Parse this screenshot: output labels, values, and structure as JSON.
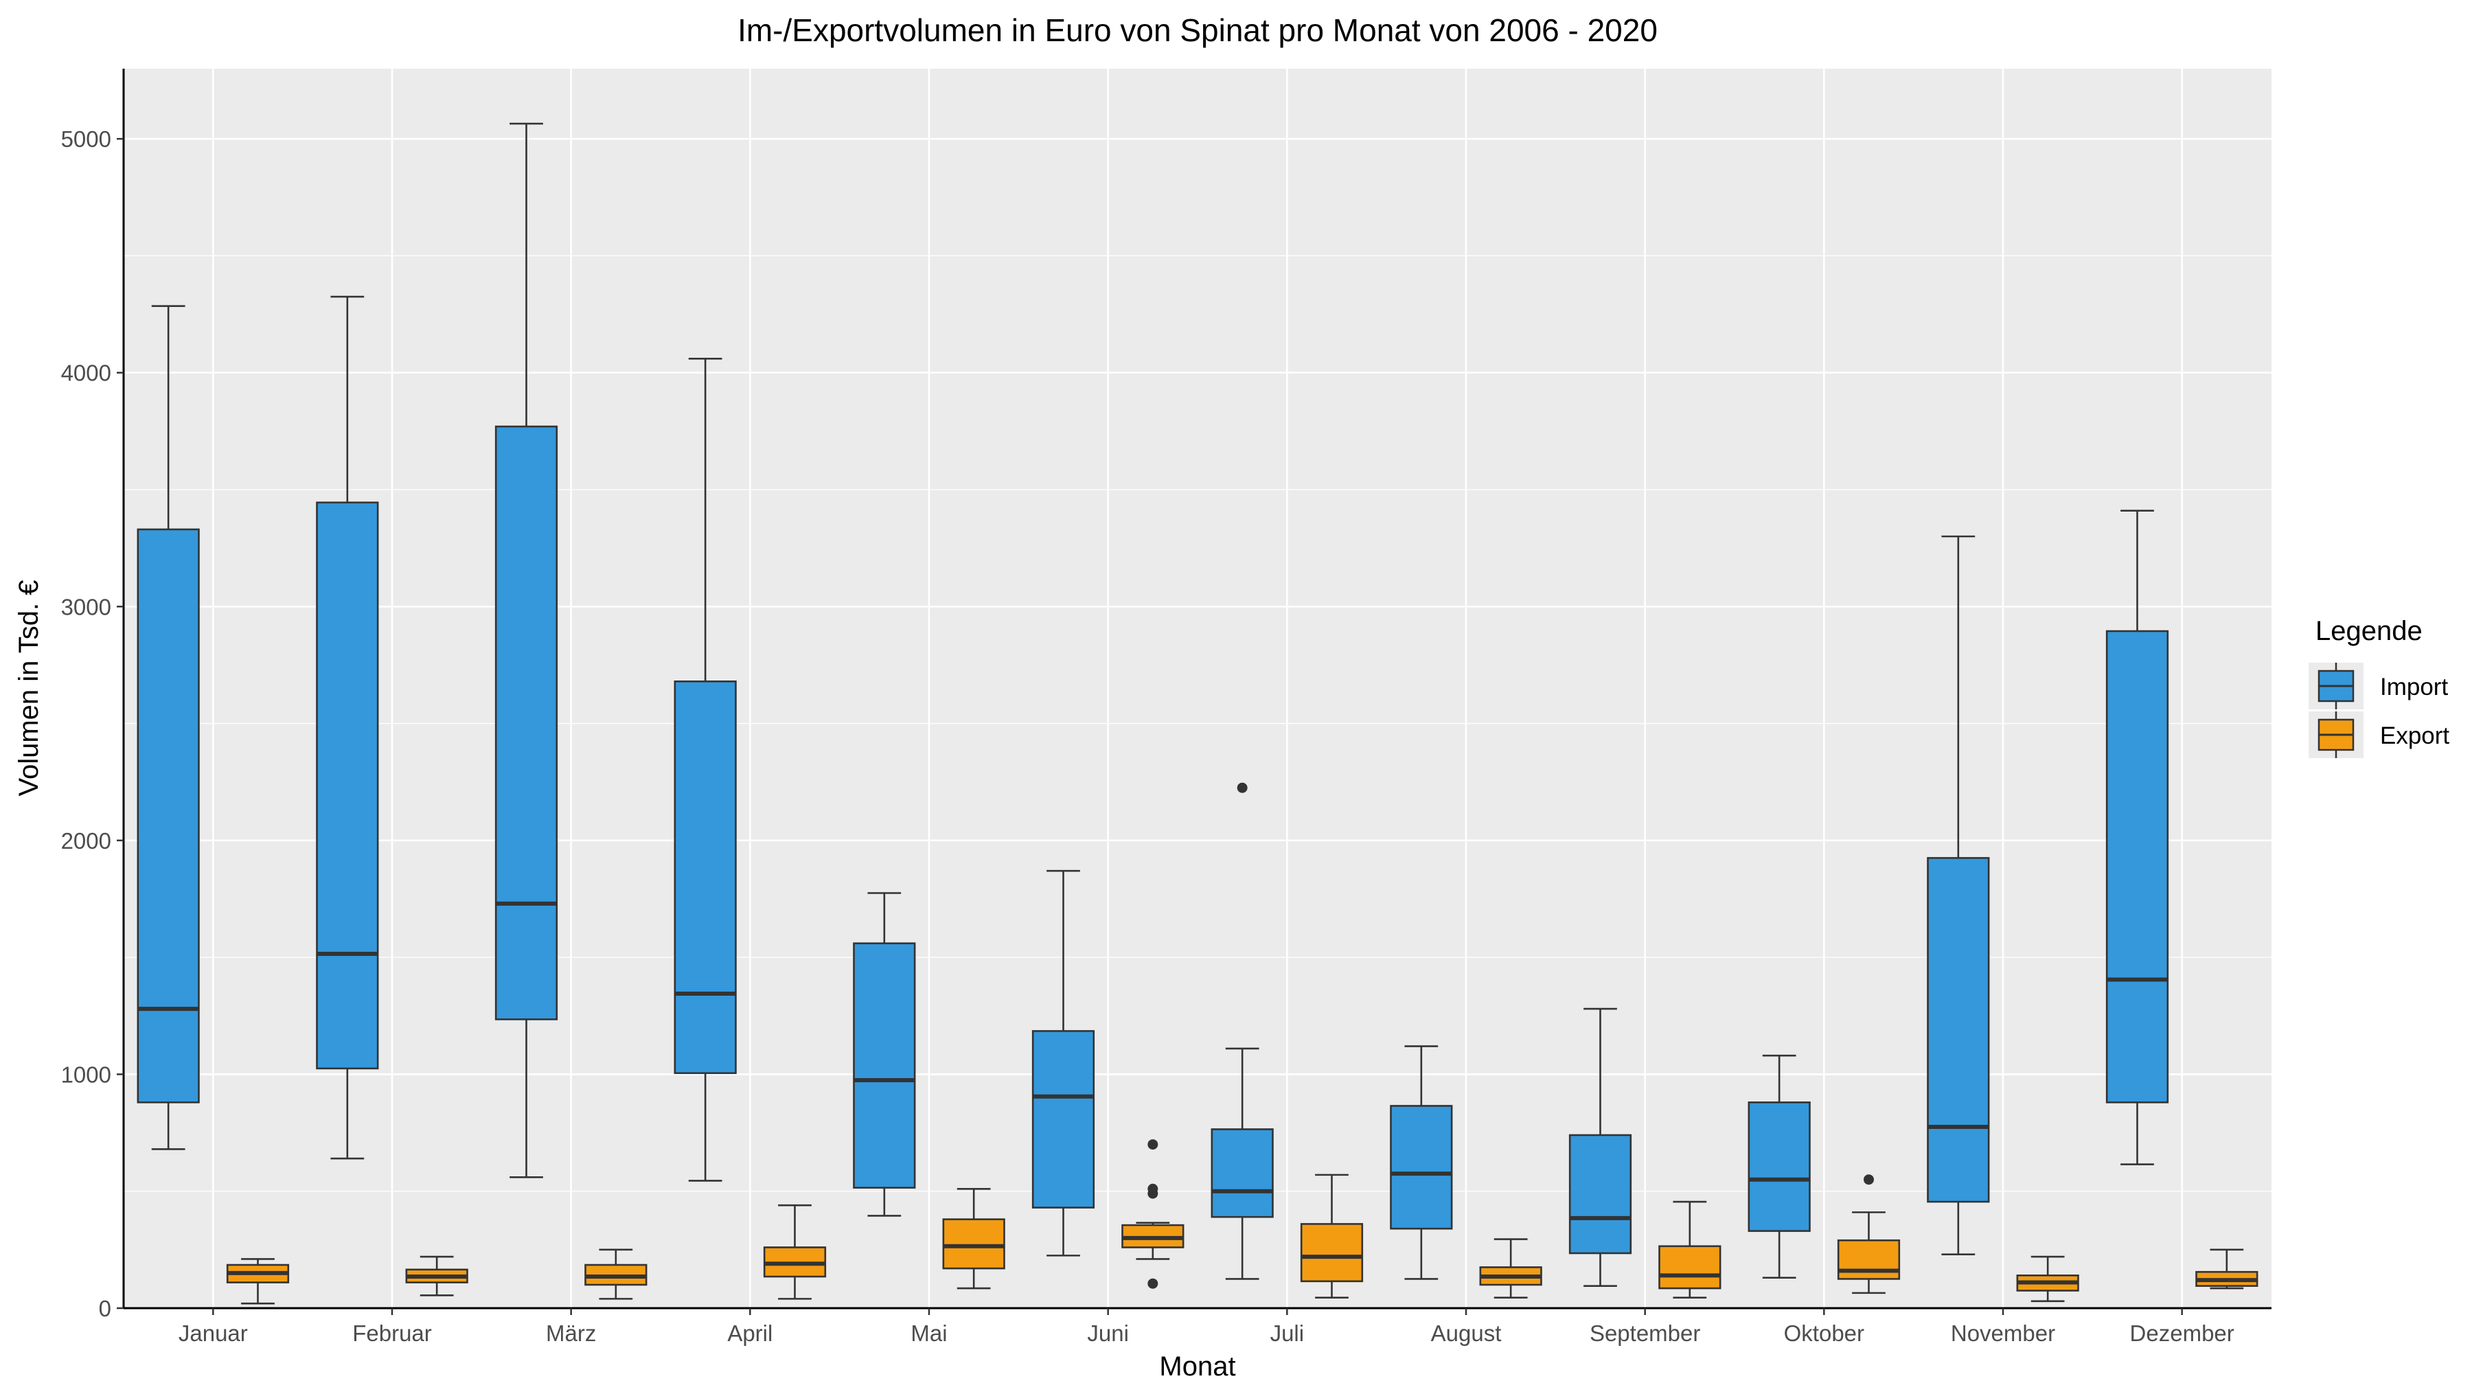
{
  "chart_data": {
    "type": "boxplot",
    "title": "Im-/Exportvolumen in Euro von Spinat pro Monat von 2006 - 2020",
    "xlabel": "Monat",
    "ylabel": "Volumen in Tsd. €",
    "ylim": [
      0,
      5300
    ],
    "yticks": [
      0,
      1000,
      2000,
      3000,
      4000,
      5000
    ],
    "grid": true,
    "legend": {
      "title": "Legende",
      "position": "right",
      "entries": [
        "Import",
        "Export"
      ]
    },
    "categories": [
      "Januar",
      "Februar",
      "März",
      "April",
      "Mai",
      "Juni",
      "Juli",
      "August",
      "September",
      "Oktober",
      "November",
      "Dezember"
    ],
    "series": [
      {
        "name": "Import",
        "color": "#3498db",
        "boxes": [
          {
            "whisker_low": 680,
            "q1": 880,
            "median": 1280,
            "q3": 3330,
            "whisker_high": 4285,
            "outliers": []
          },
          {
            "whisker_low": 640,
            "q1": 1025,
            "median": 1515,
            "q3": 3445,
            "whisker_high": 4325,
            "outliers": []
          },
          {
            "whisker_low": 560,
            "q1": 1235,
            "median": 1730,
            "q3": 3770,
            "whisker_high": 5065,
            "outliers": []
          },
          {
            "whisker_low": 545,
            "q1": 1005,
            "median": 1345,
            "q3": 2680,
            "whisker_high": 4060,
            "outliers": []
          },
          {
            "whisker_low": 395,
            "q1": 515,
            "median": 975,
            "q3": 1560,
            "whisker_high": 1775,
            "outliers": []
          },
          {
            "whisker_low": 225,
            "q1": 430,
            "median": 905,
            "q3": 1185,
            "whisker_high": 1870,
            "outliers": []
          },
          {
            "whisker_low": 125,
            "q1": 390,
            "median": 500,
            "q3": 765,
            "whisker_high": 1110,
            "outliers": [
              2225
            ]
          },
          {
            "whisker_low": 125,
            "q1": 340,
            "median": 575,
            "q3": 865,
            "whisker_high": 1120,
            "outliers": []
          },
          {
            "whisker_low": 95,
            "q1": 235,
            "median": 385,
            "q3": 740,
            "whisker_high": 1280,
            "outliers": []
          },
          {
            "whisker_low": 130,
            "q1": 330,
            "median": 550,
            "q3": 880,
            "whisker_high": 1080,
            "outliers": []
          },
          {
            "whisker_low": 230,
            "q1": 455,
            "median": 775,
            "q3": 1925,
            "whisker_high": 3300,
            "outliers": []
          },
          {
            "whisker_low": 615,
            "q1": 880,
            "median": 1405,
            "q3": 2895,
            "whisker_high": 3410,
            "outliers": []
          }
        ]
      },
      {
        "name": "Export",
        "color": "#f39c12",
        "boxes": [
          {
            "whisker_low": 20,
            "q1": 110,
            "median": 150,
            "q3": 185,
            "whisker_high": 210,
            "outliers": []
          },
          {
            "whisker_low": 55,
            "q1": 110,
            "median": 135,
            "q3": 165,
            "whisker_high": 220,
            "outliers": []
          },
          {
            "whisker_low": 40,
            "q1": 100,
            "median": 135,
            "q3": 185,
            "whisker_high": 250,
            "outliers": []
          },
          {
            "whisker_low": 40,
            "q1": 135,
            "median": 190,
            "q3": 260,
            "whisker_high": 440,
            "outliers": []
          },
          {
            "whisker_low": 85,
            "q1": 170,
            "median": 265,
            "q3": 380,
            "whisker_high": 510,
            "outliers": []
          },
          {
            "whisker_low": 210,
            "q1": 260,
            "median": 300,
            "q3": 355,
            "whisker_high": 365,
            "outliers": [
              700,
              510,
              490,
              105
            ]
          },
          {
            "whisker_low": 45,
            "q1": 115,
            "median": 220,
            "q3": 360,
            "whisker_high": 570,
            "outliers": []
          },
          {
            "whisker_low": 45,
            "q1": 100,
            "median": 135,
            "q3": 175,
            "whisker_high": 295,
            "outliers": []
          },
          {
            "whisker_low": 45,
            "q1": 85,
            "median": 140,
            "q3": 265,
            "whisker_high": 455,
            "outliers": []
          },
          {
            "whisker_low": 65,
            "q1": 125,
            "median": 160,
            "q3": 290,
            "whisker_high": 410,
            "outliers": [
              550
            ]
          },
          {
            "whisker_low": 30,
            "q1": 75,
            "median": 110,
            "q3": 140,
            "whisker_high": 220,
            "outliers": []
          },
          {
            "whisker_low": 85,
            "q1": 95,
            "median": 120,
            "q3": 155,
            "whisker_high": 250,
            "outliers": []
          }
        ]
      }
    ]
  }
}
